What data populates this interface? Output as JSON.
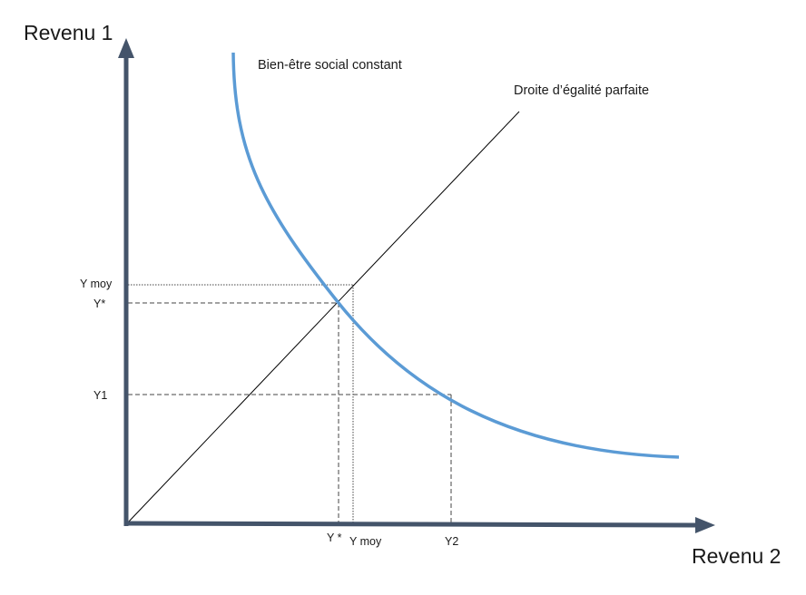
{
  "axes": {
    "y_title": "Revenu 1",
    "x_title": "Revenu 2",
    "color": "#44546a"
  },
  "curves": {
    "indifference_label": "Bien-être social constant",
    "indifference_color": "#5b9bd5",
    "equality_label": "Droite d’égalité parfaite",
    "equality_color": "#000000"
  },
  "y_ticks": {
    "y_moy": "Y moy",
    "y_star": "Y*",
    "y1": "Y1"
  },
  "x_ticks": {
    "y_star": "Y *",
    "y_moy": "Y moy",
    "y2": "Y2"
  }
}
